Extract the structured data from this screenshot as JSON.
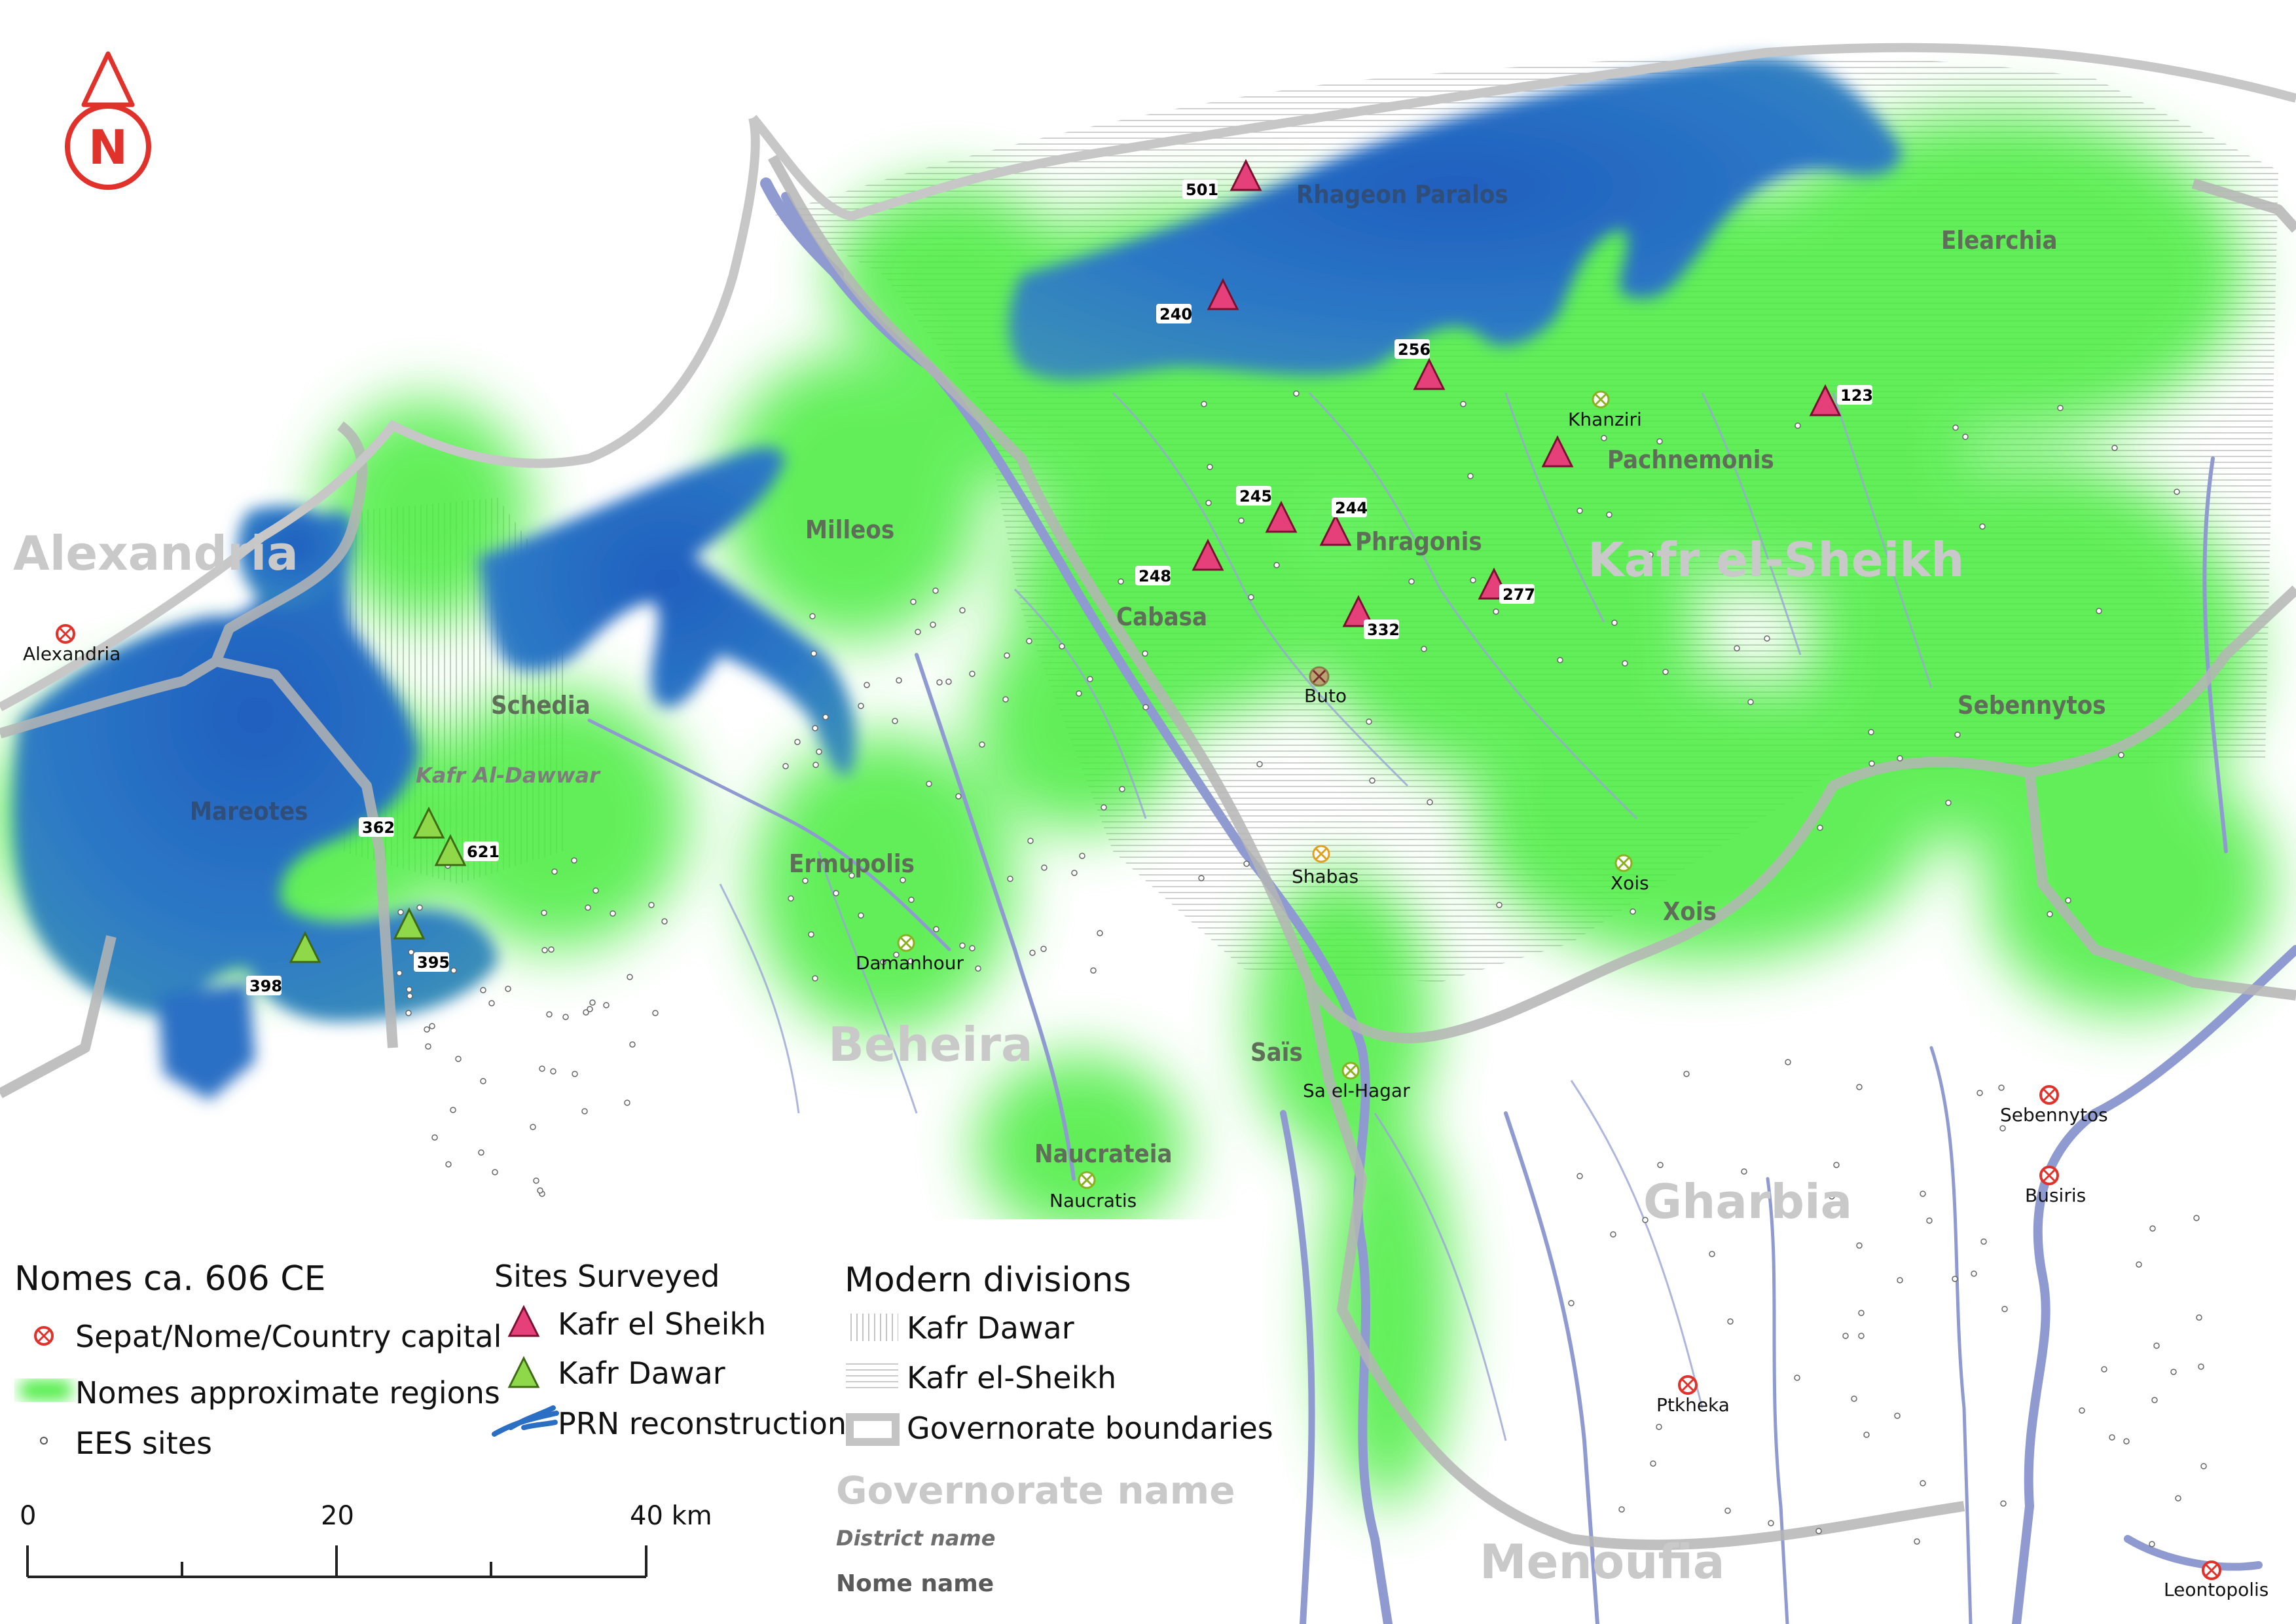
{
  "map": {
    "governorates": [
      {
        "id": "alexandria",
        "label": "Alexandria"
      },
      {
        "id": "beheira",
        "label": "Beheira"
      },
      {
        "id": "kafr-el-sheikh",
        "label": "Kafr el-Sheikh"
      },
      {
        "id": "gharbia",
        "label": "Gharbia"
      },
      {
        "id": "menoufia",
        "label": "Menoufia"
      }
    ],
    "nomes": [
      {
        "id": "rhageon-paralos",
        "label": "Rhageon Paralos"
      },
      {
        "id": "elearchia",
        "label": "Elearchia"
      },
      {
        "id": "pachnemonis",
        "label": "Pachnemonis"
      },
      {
        "id": "phragonis",
        "label": "Phragonis"
      },
      {
        "id": "cabasa",
        "label": "Cabasa"
      },
      {
        "id": "milleos",
        "label": "Milleos"
      },
      {
        "id": "schedia",
        "label": "Schedia"
      },
      {
        "id": "mareotes",
        "label": "Mareotes"
      },
      {
        "id": "ermupolis",
        "label": "Ermupolis"
      },
      {
        "id": "sebennytos-nome",
        "label": "Sebennytos"
      },
      {
        "id": "xois-nome",
        "label": "Xois"
      },
      {
        "id": "sais",
        "label": "Saïs"
      },
      {
        "id": "naucrateia",
        "label": "Naucrateia"
      }
    ],
    "districts": [
      {
        "id": "kafr-al-dawwar",
        "label": "Kafr Al-Dawwar"
      }
    ],
    "capitals": [
      {
        "id": "alexandria-city",
        "label": "Alexandria",
        "kind": "country"
      },
      {
        "id": "khanziri",
        "label": "Khanziri",
        "kind": "nome"
      },
      {
        "id": "buto",
        "label": "Buto",
        "kind": "sepat"
      },
      {
        "id": "shabas",
        "label": "Shabas",
        "kind": "nome"
      },
      {
        "id": "xois-city",
        "label": "Xois",
        "kind": "nome"
      },
      {
        "id": "damanhour",
        "label": "Damanhour",
        "kind": "nome"
      },
      {
        "id": "sa-el-hagar",
        "label": "Sa el-Hagar",
        "kind": "nome"
      },
      {
        "id": "naucratis",
        "label": "Naucratis",
        "kind": "nome"
      },
      {
        "id": "sebennytos-city",
        "label": "Sebennytos",
        "kind": "sepat"
      },
      {
        "id": "busiris",
        "label": "Busiris",
        "kind": "sepat"
      },
      {
        "id": "ptkheka",
        "label": "Ptkheka",
        "kind": "sepat"
      },
      {
        "id": "leontopolis",
        "label": "Leontopolis",
        "kind": "sepat"
      }
    ],
    "sites_kafr_el_sheikh": [
      "501",
      "240",
      "256",
      "123",
      "245",
      "244",
      "248",
      "277",
      "332"
    ],
    "sites_kafr_dawar": [
      "362",
      "621",
      "395",
      "398"
    ],
    "north_label": "N",
    "colors": {
      "nome_green": "#3fe83a",
      "prn_blue": "#2a6fc4",
      "river": "#8e9ad0",
      "boundary": "#bcbcbc",
      "site_pink": "#e6407a",
      "site_green": "#8ed84a",
      "capital_red": "#e0312b"
    }
  },
  "legend": {
    "nomes_title": "Nomes ca. 606 CE",
    "capital_label": "Sepat/Nome/Country capital",
    "region_label": "Nomes approximate regions",
    "ees_label": "EES sites",
    "sites_title": "Sites Surveyed",
    "kes_label": "Kafr el Sheikh",
    "kd_label": "Kafr Dawar",
    "prn_label": "PRN reconstruction",
    "modern_title": "Modern divisions",
    "kafr_dawar_hatch": "Kafr Dawar",
    "kafr_sheikh_hatch": "Kafr el-Sheikh",
    "gov_boundaries": "Governorate boundaries",
    "sample_gov": "Governorate name",
    "sample_district": "District name",
    "sample_nome": "Nome name"
  },
  "scale": {
    "ticks": [
      "0",
      "20",
      "40 km"
    ]
  }
}
